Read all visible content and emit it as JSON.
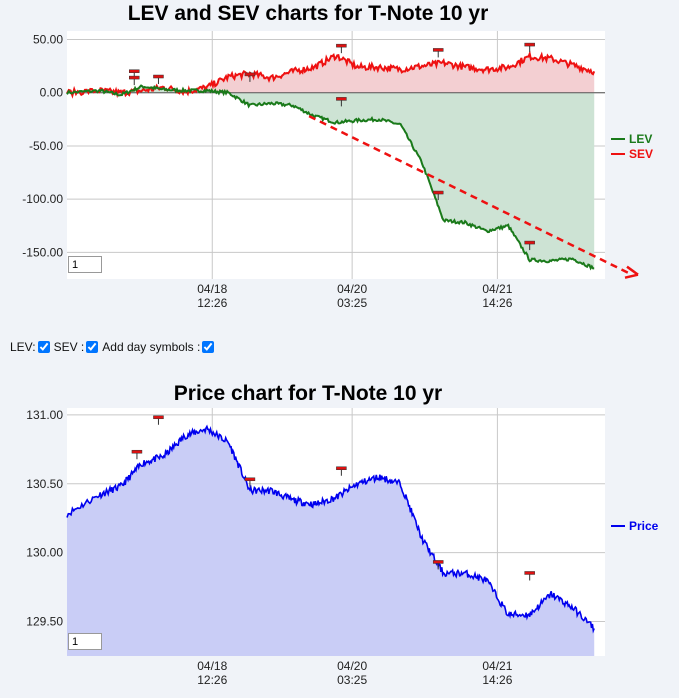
{
  "lev_sev_chart": {
    "title": "LEV and SEV charts for T-Note 10 yr",
    "y_ticks": [
      "50.00",
      "0.00",
      "-50.00",
      "-100.00",
      "-150.00"
    ],
    "x_ticks": [
      {
        "date": "04/18",
        "time": "12:26"
      },
      {
        "date": "04/20",
        "time": "03:25"
      },
      {
        "date": "04/21",
        "time": "14:26"
      }
    ],
    "legend": [
      "LEV",
      "SEV"
    ],
    "zoom_value": "1"
  },
  "controls": {
    "lev_label": "LEV:",
    "sev_label": "SEV :",
    "day_symbols_label": "Add day symbols :",
    "lev_checked": true,
    "sev_checked": true,
    "day_symbols_checked": true
  },
  "price_chart": {
    "title": "Price chart for T-Note 10 yr",
    "y_ticks": [
      "131.00",
      "130.50",
      "130.00",
      "129.50"
    ],
    "x_ticks": [
      {
        "date": "04/18",
        "time": "12:26"
      },
      {
        "date": "04/20",
        "time": "03:25"
      },
      {
        "date": "04/21",
        "time": "14:26"
      }
    ],
    "legend": [
      "Price"
    ],
    "zoom_value": "1"
  },
  "colors": {
    "lev": "#1a7a1a",
    "lev_fill": "#cde3d4",
    "sev": "#ee1111",
    "sev_fill": "#f3cfd2",
    "price": "#0000ee",
    "price_fill": "#c9cdf6",
    "trend": "#ee1111",
    "marker": "#dd1111"
  },
  "chart_data": [
    {
      "type": "line",
      "title": "LEV and SEV charts for T-Note 10 yr",
      "xlabel": "",
      "ylabel": "",
      "ylim": [
        -175,
        58
      ],
      "x_tick_labels": [
        "04/18 12:26",
        "04/20 03:25",
        "04/21 14:26"
      ],
      "x": [
        0,
        6,
        10,
        14,
        18,
        22,
        26,
        30,
        34,
        38,
        42,
        46,
        50,
        54,
        58,
        62,
        66,
        70,
        74,
        78,
        82,
        86,
        90,
        94,
        98
      ],
      "series": [
        {
          "name": "LEV",
          "values": [
            0,
            2,
            -2,
            6,
            3,
            2,
            2,
            0,
            -12,
            -10,
            -12,
            -22,
            -28,
            -26,
            -25,
            -30,
            -66,
            -120,
            -122,
            -130,
            -125,
            -157,
            -158,
            -156,
            -165
          ]
        },
        {
          "name": "SEV",
          "values": [
            0,
            2,
            0,
            2,
            5,
            1,
            5,
            15,
            18,
            14,
            20,
            24,
            35,
            24,
            24,
            22,
            25,
            28,
            24,
            22,
            24,
            34,
            32,
            26,
            20
          ]
        }
      ],
      "trend_line": {
        "from": [
          45,
          -22
        ],
        "to": [
          100,
          -170
        ]
      },
      "grid": true,
      "legend_position": "right"
    },
    {
      "type": "area",
      "title": "Price chart for T-Note 10 yr",
      "xlabel": "",
      "ylabel": "",
      "ylim": [
        129.25,
        131.05
      ],
      "x_tick_labels": [
        "04/18 12:26",
        "04/20 03:25",
        "04/21 14:26"
      ],
      "x": [
        0,
        6,
        10,
        14,
        18,
        22,
        26,
        30,
        34,
        38,
        42,
        46,
        50,
        54,
        58,
        62,
        66,
        70,
        74,
        78,
        82,
        86,
        90,
        94,
        98
      ],
      "series": [
        {
          "name": "Price",
          "values": [
            130.28,
            130.42,
            130.48,
            130.65,
            130.7,
            130.85,
            130.9,
            130.8,
            130.45,
            130.45,
            130.38,
            130.35,
            130.4,
            130.5,
            130.55,
            130.5,
            130.1,
            129.85,
            129.85,
            129.8,
            129.55,
            129.55,
            129.7,
            129.6,
            129.45
          ]
        }
      ],
      "grid": true,
      "legend_position": "right"
    }
  ]
}
